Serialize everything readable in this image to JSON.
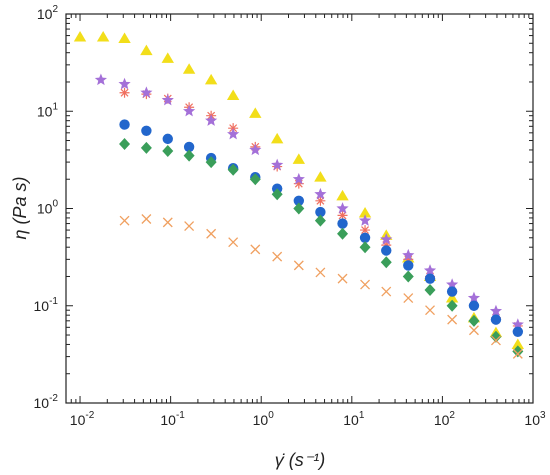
{
  "chart_data": {
    "type": "scatter",
    "xscale": "log",
    "yscale": "log",
    "xlim": [
      0.007,
      1000
    ],
    "ylim": [
      0.01,
      100
    ],
    "xlabel": "γ̇ (s⁻¹)",
    "ylabel": "η (Pa s)",
    "xticks": [
      {
        "value": 0.01,
        "base": "10",
        "exp": "-2"
      },
      {
        "value": 0.1,
        "base": "10",
        "exp": "-1"
      },
      {
        "value": 1,
        "base": "10",
        "exp": "0"
      },
      {
        "value": 10,
        "base": "10",
        "exp": "1"
      },
      {
        "value": 100,
        "base": "10",
        "exp": "2"
      },
      {
        "value": 1000,
        "base": "10",
        "exp": "3"
      }
    ],
    "yticks": [
      {
        "value": 0.01,
        "base": "10",
        "exp": "-2"
      },
      {
        "value": 0.1,
        "base": "10",
        "exp": "-1"
      },
      {
        "value": 1,
        "base": "10",
        "exp": "0"
      },
      {
        "value": 10,
        "base": "10",
        "exp": "1"
      },
      {
        "value": 100,
        "base": "10",
        "exp": "2"
      }
    ],
    "grid": false,
    "legend": "none",
    "series": [
      {
        "marker": "triangle",
        "color": "#f2de1a",
        "points": [
          [
            0.01,
            58
          ],
          [
            0.018,
            58
          ],
          [
            0.031,
            56
          ],
          [
            0.054,
            42
          ],
          [
            0.093,
            35
          ],
          [
            0.16,
            27
          ],
          [
            0.28,
            21
          ],
          [
            0.49,
            14.5
          ],
          [
            0.86,
            9.5
          ],
          [
            1.5,
            5.2
          ],
          [
            2.6,
            3.2
          ],
          [
            4.5,
            2.1
          ],
          [
            7.9,
            1.35
          ],
          [
            14,
            0.9
          ],
          [
            24,
            0.53
          ],
          [
            42,
            0.31
          ],
          [
            73,
            0.2
          ],
          [
            128,
            0.12
          ],
          [
            223,
            0.075
          ],
          [
            390,
            0.053
          ],
          [
            680,
            0.04
          ]
        ]
      },
      {
        "marker": "asterisk",
        "color": "#f07060",
        "points": [
          [
            0.031,
            15.5
          ],
          [
            0.054,
            15
          ],
          [
            0.093,
            13.5
          ],
          [
            0.16,
            11
          ],
          [
            0.28,
            9
          ],
          [
            0.49,
            6.7
          ],
          [
            0.86,
            4.3
          ],
          [
            1.5,
            2.7
          ],
          [
            2.6,
            1.8
          ],
          [
            4.5,
            1.2
          ],
          [
            7.9,
            0.85
          ],
          [
            14,
            0.6
          ],
          [
            24,
            0.42
          ],
          [
            42,
            0.3
          ],
          [
            73,
            0.2
          ],
          [
            128,
            0.14
          ],
          [
            223,
            0.1
          ],
          [
            390,
            0.075
          ],
          [
            680,
            0.062
          ]
        ]
      },
      {
        "marker": "star",
        "color": "#a470d8",
        "points": [
          [
            0.017,
            21
          ],
          [
            0.031,
            19
          ],
          [
            0.054,
            15.5
          ],
          [
            0.093,
            13
          ],
          [
            0.16,
            10
          ],
          [
            0.28,
            8
          ],
          [
            0.49,
            5.8
          ],
          [
            0.86,
            4
          ],
          [
            1.5,
            2.8
          ],
          [
            2.6,
            2
          ],
          [
            4.5,
            1.4
          ],
          [
            7.9,
            1
          ],
          [
            14,
            0.75
          ],
          [
            24,
            0.48
          ],
          [
            42,
            0.33
          ],
          [
            73,
            0.23
          ],
          [
            128,
            0.165
          ],
          [
            223,
            0.12
          ],
          [
            390,
            0.088
          ],
          [
            680,
            0.064
          ]
        ]
      },
      {
        "marker": "circle",
        "color": "#2266cc",
        "points": [
          [
            0.031,
            7.3
          ],
          [
            0.054,
            6.3
          ],
          [
            0.093,
            5.2
          ],
          [
            0.16,
            4.3
          ],
          [
            0.28,
            3.3
          ],
          [
            0.49,
            2.6
          ],
          [
            0.86,
            2.1
          ],
          [
            1.5,
            1.6
          ],
          [
            2.6,
            1.2
          ],
          [
            4.5,
            0.92
          ],
          [
            7.9,
            0.7
          ],
          [
            14,
            0.5
          ],
          [
            24,
            0.37
          ],
          [
            42,
            0.26
          ],
          [
            73,
            0.19
          ],
          [
            128,
            0.14
          ],
          [
            223,
            0.1
          ],
          [
            390,
            0.072
          ],
          [
            680,
            0.054
          ]
        ]
      },
      {
        "marker": "diamond",
        "color": "#3a9e5a",
        "points": [
          [
            0.031,
            4.6
          ],
          [
            0.054,
            4.2
          ],
          [
            0.093,
            3.9
          ],
          [
            0.16,
            3.5
          ],
          [
            0.28,
            3
          ],
          [
            0.49,
            2.5
          ],
          [
            0.86,
            2
          ],
          [
            1.5,
            1.4
          ],
          [
            2.6,
            1
          ],
          [
            4.5,
            0.75
          ],
          [
            7.9,
            0.55
          ],
          [
            14,
            0.4
          ],
          [
            24,
            0.28
          ],
          [
            42,
            0.2
          ],
          [
            73,
            0.145
          ],
          [
            128,
            0.1
          ],
          [
            223,
            0.07
          ],
          [
            390,
            0.048
          ],
          [
            680,
            0.034
          ]
        ]
      },
      {
        "marker": "cross",
        "color": "#f0a060",
        "points": [
          [
            0.031,
            0.75
          ],
          [
            0.054,
            0.78
          ],
          [
            0.093,
            0.72
          ],
          [
            0.16,
            0.66
          ],
          [
            0.28,
            0.55
          ],
          [
            0.49,
            0.45
          ],
          [
            0.86,
            0.38
          ],
          [
            1.5,
            0.32
          ],
          [
            2.6,
            0.26
          ],
          [
            4.5,
            0.22
          ],
          [
            7.9,
            0.19
          ],
          [
            14,
            0.165
          ],
          [
            24,
            0.14
          ],
          [
            42,
            0.12
          ],
          [
            73,
            0.09
          ],
          [
            128,
            0.072
          ],
          [
            223,
            0.056
          ],
          [
            390,
            0.044
          ],
          [
            680,
            0.032
          ]
        ]
      }
    ]
  }
}
